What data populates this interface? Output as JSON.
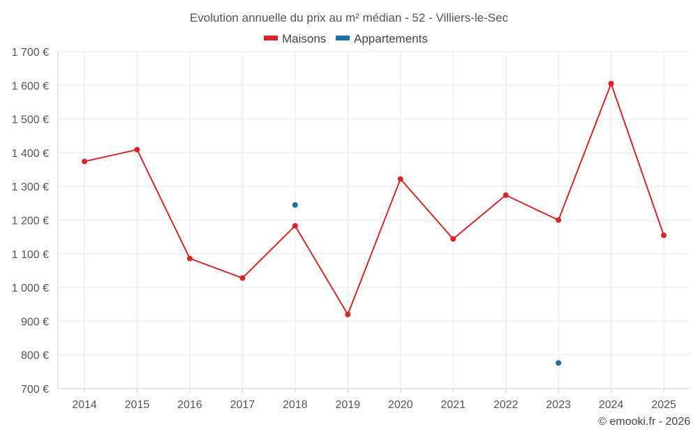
{
  "chart_data": {
    "type": "line",
    "title": "Evolution annuelle du prix au m² médian - 52 - Villiers-le-Sec",
    "categories": [
      "2014",
      "2015",
      "2016",
      "2017",
      "2018",
      "2019",
      "2020",
      "2021",
      "2022",
      "2023",
      "2024",
      "2025"
    ],
    "series": [
      {
        "name": "Maisons",
        "color": "#d62728",
        "mode": "lines+markers",
        "values": [
          1374,
          1409,
          1086,
          1028,
          1183,
          920,
          1322,
          1144,
          1274,
          1200,
          1605,
          1155
        ]
      },
      {
        "name": "Appartements",
        "color": "#1f6fa8",
        "mode": "markers",
        "values": [
          null,
          null,
          null,
          null,
          1245,
          null,
          null,
          null,
          null,
          776,
          null,
          null
        ]
      }
    ],
    "ylim": [
      700,
      1700
    ],
    "yticks": [
      700,
      800,
      900,
      1000,
      1100,
      1200,
      1300,
      1400,
      1500,
      1600,
      1700
    ],
    "ytick_labels": [
      "700 €",
      "800 €",
      "900 €",
      "1 000 €",
      "1 100 €",
      "1 200 €",
      "1 300 €",
      "1 400 €",
      "1 500 €",
      "1 600 €",
      "1 700 €"
    ],
    "xlabel": "",
    "ylabel": "",
    "grid": true,
    "legend_position": "top-center"
  },
  "credit": "© emooki.fr - 2026"
}
